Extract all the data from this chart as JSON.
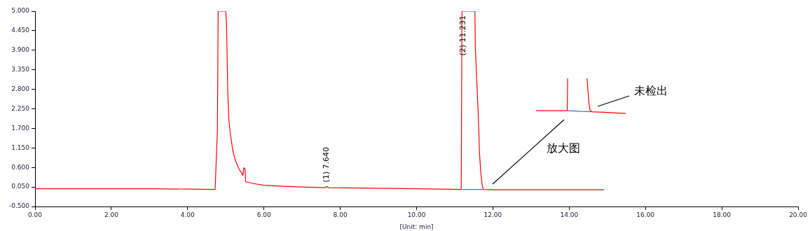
{
  "chart_data": {
    "type": "line",
    "xlabel": "[Unit: min]",
    "xlim": [
      0,
      20
    ],
    "xticks": [
      {
        "value": 0,
        "label": "0.00"
      },
      {
        "value": 2,
        "label": "2.00"
      },
      {
        "value": 4,
        "label": "4.00"
      },
      {
        "value": 6,
        "label": "6.00"
      },
      {
        "value": 8,
        "label": "8.00"
      },
      {
        "value": 10,
        "label": "10.00"
      },
      {
        "value": 12,
        "label": "12.00"
      },
      {
        "value": 14,
        "label": "14.00"
      },
      {
        "value": 16,
        "label": "16.00"
      },
      {
        "value": 18,
        "label": "18.00"
      },
      {
        "value": 20,
        "label": "20.00"
      }
    ],
    "ylim": [
      -0.5,
      5
    ],
    "yticks": [
      {
        "value": -0.5,
        "label": "-0.500"
      },
      {
        "value": 0.05,
        "label": "0.050"
      },
      {
        "value": 0.6,
        "label": "0.600"
      },
      {
        "value": 1.15,
        "label": "1.150"
      },
      {
        "value": 1.7,
        "label": "1.700"
      },
      {
        "value": 2.25,
        "label": "2.250"
      },
      {
        "value": 2.8,
        "label": "2.800"
      },
      {
        "value": 3.35,
        "label": "3.350"
      },
      {
        "value": 3.9,
        "label": "3.900"
      },
      {
        "value": 4.45,
        "label": "4.450"
      },
      {
        "value": 5,
        "label": "5.000"
      }
    ],
    "grid": false,
    "legend": false,
    "marker": "none",
    "line_style": "solid",
    "series": [
      {
        "type": "line",
        "color": "#ff0000",
        "x": [
          0,
          1,
          2,
          3,
          4,
          4.72,
          4.78,
          4.8,
          5.0,
          5.02,
          5.05,
          5.08,
          5.12,
          5.18,
          5.25,
          5.35,
          5.45,
          5.47,
          5.5,
          5.52,
          5.7,
          6.0,
          6.5,
          7.0,
          7.6,
          7.64,
          7.7,
          8.5,
          10,
          11.17,
          11.19,
          11.53,
          11.54,
          11.58,
          11.62,
          11.65,
          11.68,
          11.72,
          11.75,
          12,
          13,
          14.91
        ],
        "values": [
          0.0,
          0.0,
          0.0,
          0.0,
          -0.01,
          -0.02,
          1.65,
          5.0,
          5.0,
          4.6,
          2.8,
          1.95,
          1.55,
          1.1,
          0.8,
          0.55,
          0.38,
          0.58,
          0.58,
          0.2,
          0.15,
          0.1,
          0.07,
          0.05,
          0.03,
          0.06,
          0.03,
          0.02,
          0.0,
          -0.02,
          5.0,
          5.0,
          4.0,
          3.0,
          2.0,
          1.0,
          0.5,
          0.1,
          -0.02,
          -0.03,
          -0.03,
          -0.03
        ]
      },
      {
        "type": "line",
        "color": "#3070ff",
        "x": [
          11.19,
          11.75
        ],
        "values": [
          -0.02,
          -0.02
        ]
      },
      {
        "type": "line",
        "color": "#ff0000",
        "x": [
          13.13,
          13.5,
          13.95,
          13.96,
          13.97
        ],
        "values": [
          2.2,
          2.2,
          2.2,
          3.11,
          3.11
        ]
      },
      {
        "type": "line",
        "color": "#ff0000",
        "x": [
          14.47,
          14.49,
          14.52,
          14.55,
          14.6,
          15.0,
          15.48
        ],
        "values": [
          3.11,
          2.8,
          2.4,
          2.2,
          2.17,
          2.15,
          2.12
        ]
      },
      {
        "type": "line",
        "color": "#3070ff",
        "x": [
          13.96,
          14.3,
          14.6
        ],
        "values": [
          2.2,
          2.18,
          2.17
        ]
      }
    ],
    "annotations": [
      {
        "text": "(1) 7.640",
        "x": 7.64,
        "y": 0.06
      },
      {
        "text": "(2) 11.231",
        "x": 11.231,
        "y": 5.0
      },
      "放大图",
      "未检出"
    ]
  }
}
